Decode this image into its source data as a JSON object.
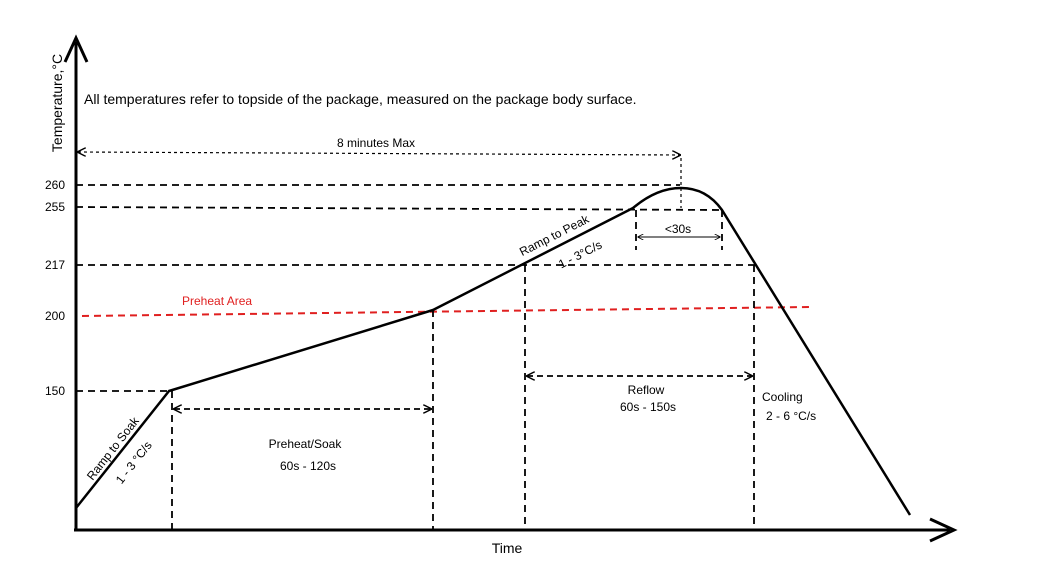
{
  "diagram": {
    "note": "All temperatures refer to topside of the package, measured on the package body surface.",
    "y_axis_title": "Temperature,°C",
    "x_axis_title": "Time",
    "y_ticks": [
      "260",
      "255",
      "217",
      "200",
      "150"
    ],
    "max_time_label": "8 minutes Max",
    "peak_time_label": "<30s",
    "preheat_area_label": "Preheat Area",
    "preheat_area_color": "#e02020",
    "ramp_to_soak": {
      "title": "Ramp to Soak",
      "rate": "1 - 3 °C/s"
    },
    "ramp_to_peak": {
      "title": "Ramp to Peak",
      "rate": "1 - 3°C/s"
    },
    "preheat_soak": {
      "title": "Preheat/Soak",
      "time": "60s - 120s"
    },
    "reflow": {
      "title": "Reflow",
      "time": "60s - 150s"
    },
    "cooling": {
      "title": "Cooling",
      "rate": "2 - 6 °C/s"
    }
  }
}
